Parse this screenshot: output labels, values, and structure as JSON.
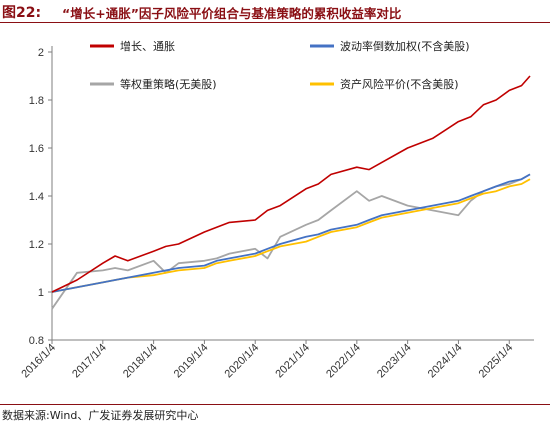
{
  "header": {
    "figure_label": "图22:",
    "title": "“增长+通胀”因子风险平价组合与基准策略的累积收益率对比"
  },
  "source": "数据来源:Wind、广发证券发展研究中心",
  "chart_data": {
    "type": "line",
    "xlabel": "",
    "ylabel": "",
    "ylim": [
      0.8,
      2.0
    ],
    "y_ticks": [
      "0.8",
      "1",
      "1.2",
      "1.4",
      "1.6",
      "1.8",
      "2"
    ],
    "x_ticks": [
      "2016/1/4",
      "2017/1/4",
      "2018/1/4",
      "2019/1/4",
      "2020/1/4",
      "2021/1/4",
      "2022/1/4",
      "2023/1/4",
      "2024/1/4",
      "2025/1/4"
    ],
    "grid": false,
    "legend_position": "top",
    "x": [
      "2016/1/4",
      "2016/7/1",
      "2017/1/4",
      "2017/4/1",
      "2017/7/1",
      "2018/1/4",
      "2018/4/1",
      "2018/7/1",
      "2019/1/4",
      "2019/4/1",
      "2019/7/1",
      "2020/1/4",
      "2020/4/1",
      "2020/7/1",
      "2021/1/4",
      "2021/4/1",
      "2021/7/1",
      "2022/1/4",
      "2022/4/1",
      "2022/7/1",
      "2023/1/4",
      "2023/7/1",
      "2024/1/4",
      "2024/4/1",
      "2024/7/1",
      "2024/10/1",
      "2025/1/4",
      "2025/4/1",
      "2025/6/1"
    ],
    "series": [
      {
        "name": "增长、通胀",
        "color": "#c00000",
        "values": [
          1.0,
          1.05,
          1.12,
          1.15,
          1.13,
          1.17,
          1.19,
          1.2,
          1.25,
          1.27,
          1.29,
          1.3,
          1.34,
          1.36,
          1.43,
          1.45,
          1.49,
          1.52,
          1.51,
          1.54,
          1.6,
          1.64,
          1.71,
          1.73,
          1.78,
          1.8,
          1.84,
          1.86,
          1.9
        ]
      },
      {
        "name": "波动率倒数加权(不含美股)",
        "color": "#4472c4",
        "values": [
          1.0,
          1.02,
          1.04,
          1.05,
          1.06,
          1.08,
          1.09,
          1.1,
          1.11,
          1.13,
          1.14,
          1.16,
          1.18,
          1.2,
          1.23,
          1.24,
          1.26,
          1.28,
          1.3,
          1.32,
          1.34,
          1.36,
          1.38,
          1.4,
          1.42,
          1.44,
          1.46,
          1.47,
          1.49
        ]
      },
      {
        "name": "等权重策略(无美股)",
        "color": "#a6a6a6",
        "values": [
          0.93,
          1.08,
          1.09,
          1.1,
          1.09,
          1.13,
          1.08,
          1.12,
          1.13,
          1.14,
          1.16,
          1.18,
          1.14,
          1.23,
          1.28,
          1.3,
          1.34,
          1.42,
          1.38,
          1.4,
          1.36,
          1.34,
          1.32,
          1.38,
          1.42,
          1.44,
          1.45,
          1.47,
          1.49
        ]
      },
      {
        "name": "资产风险平价(不含美股)",
        "color": "#ffc000",
        "values": [
          1.0,
          1.02,
          1.04,
          1.05,
          1.06,
          1.07,
          1.08,
          1.09,
          1.1,
          1.12,
          1.13,
          1.15,
          1.17,
          1.19,
          1.21,
          1.23,
          1.25,
          1.27,
          1.29,
          1.31,
          1.33,
          1.35,
          1.37,
          1.39,
          1.41,
          1.42,
          1.44,
          1.45,
          1.47
        ]
      }
    ]
  }
}
